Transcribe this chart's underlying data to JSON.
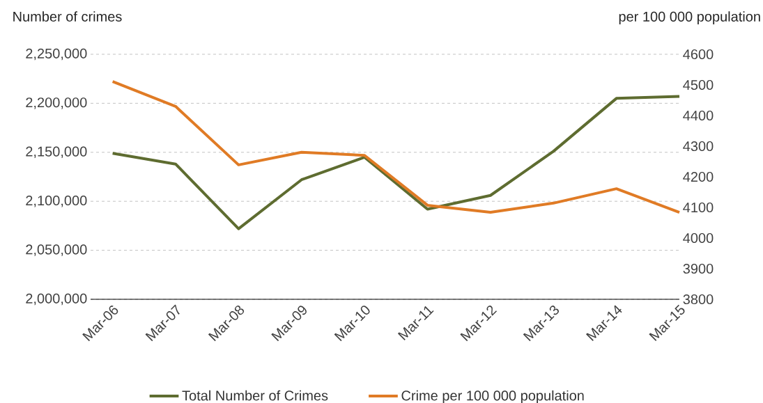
{
  "chart_data": {
    "type": "line",
    "ylabel": "Number of crimes",
    "y2label": "per 100 000 population",
    "categories": [
      "Mar-06",
      "Mar-07",
      "Mar-08",
      "Mar-09",
      "Mar-10",
      "Mar-11",
      "Mar-12",
      "Mar-13",
      "Mar-14",
      "Mar-15"
    ],
    "series": [
      {
        "name": "Total Number of Crimes",
        "color": "#5e6c30",
        "values": [
          2149000,
          2138000,
          2072000,
          2122000,
          2145000,
          2092000,
          2106000,
          2151000,
          2205000,
          2207000
        ]
      },
      {
        "name": "Crime per 100 000 population",
        "color": "#e07b25",
        "axis": "y2",
        "values": [
          4511,
          4430,
          4239,
          4280,
          4270,
          4107,
          4084,
          4114,
          4161,
          4084
        ]
      }
    ],
    "ylim": [
      2000000,
      2250000
    ],
    "yticks": [
      {
        "value": 2000000,
        "label": "2,000,000"
      },
      {
        "value": 2050000,
        "label": "2,050,000"
      },
      {
        "value": 2100000,
        "label": "2,100,000"
      },
      {
        "value": 2150000,
        "label": "2,150,000"
      },
      {
        "value": 2200000,
        "label": "2,200,000"
      },
      {
        "value": 2250000,
        "label": "2,250,000"
      }
    ],
    "y2lim": [
      3800,
      4600
    ],
    "y2ticks": [
      3800,
      3900,
      4000,
      4100,
      4200,
      4300,
      4400,
      4500,
      4600
    ],
    "grid": "y",
    "legend": "bottom",
    "marker": "none",
    "line_style": "solid"
  }
}
